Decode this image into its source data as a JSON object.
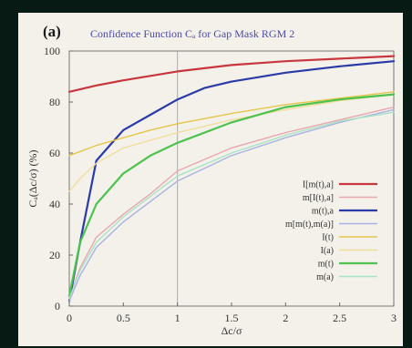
{
  "figure": {
    "tag": "(a)",
    "title": "Confidence Function Cₐ for Gap Mask RGM 2"
  },
  "chart_data": {
    "type": "line",
    "title": "Confidence Function Cₐ for Gap Mask RGM 2",
    "xlabel": "Δc/σ",
    "ylabel": "Cₐ(Δc/σ) (%)",
    "xlim": [
      0,
      3
    ],
    "ylim": [
      0,
      100
    ],
    "xticks": [
      "0",
      "0.5",
      "1",
      "1.5",
      "2",
      "2.5",
      "3"
    ],
    "yticks": [
      "0",
      "20",
      "40",
      "60",
      "80",
      "100"
    ],
    "grid": false,
    "vline_x": 1,
    "legend_position": "bottom-right",
    "series": [
      {
        "name": "I[m(t),a]",
        "color": "#c8363e",
        "width": 2.2,
        "x": [
          0,
          0.25,
          0.5,
          1,
          1.5,
          2,
          2.5,
          3
        ],
        "y": [
          84,
          86.5,
          88.5,
          92,
          94.5,
          96,
          97,
          98
        ]
      },
      {
        "name": "m[I(t),a]",
        "color": "#e8a8ae",
        "width": 1.4,
        "x": [
          0,
          0.1,
          0.25,
          0.5,
          0.75,
          1,
          1.5,
          2,
          2.5,
          3
        ],
        "y": [
          3,
          15,
          27,
          36,
          44,
          53,
          62,
          68,
          73,
          78
        ]
      },
      {
        "name": "m(t),a",
        "color": "#2a3aa8",
        "width": 2.2,
        "x": [
          0,
          0.1,
          0.25,
          0.5,
          0.75,
          1,
          1.25,
          1.5,
          2,
          2.5,
          3
        ],
        "y": [
          2,
          25,
          57,
          69,
          75,
          81,
          85.5,
          88,
          91.5,
          94,
          96
        ]
      },
      {
        "name": "m[m(t),m(a)]",
        "color": "#a9b3e0",
        "width": 1.4,
        "x": [
          0,
          0.1,
          0.25,
          0.5,
          0.75,
          1,
          1.5,
          2,
          2.5,
          3
        ],
        "y": [
          2,
          12,
          23,
          33,
          41,
          49,
          59,
          66,
          72,
          77
        ]
      },
      {
        "name": "I(t)",
        "color": "#e5c64a",
        "width": 1.4,
        "x": [
          0,
          0.25,
          0.5,
          0.75,
          1,
          1.5,
          2,
          2.5,
          3
        ],
        "y": [
          59,
          63,
          66,
          69,
          71.5,
          75.5,
          79,
          81.5,
          84
        ]
      },
      {
        "name": "I(a)",
        "color": "#f2de9c",
        "width": 1.4,
        "x": [
          0,
          0.1,
          0.25,
          0.5,
          0.75,
          1,
          1.5,
          2,
          2.5,
          3
        ],
        "y": [
          45,
          50,
          56,
          62,
          65,
          68,
          73,
          77,
          80.5,
          83
        ]
      },
      {
        "name": "m(t)",
        "color": "#4ec24e",
        "width": 2.2,
        "x": [
          0,
          0.1,
          0.25,
          0.5,
          0.75,
          1,
          1.5,
          2,
          2.5,
          3
        ],
        "y": [
          4,
          25,
          40,
          52,
          59,
          64,
          72,
          78,
          81,
          83
        ]
      },
      {
        "name": "m(a)",
        "color": "#a8e3c6",
        "width": 1.4,
        "x": [
          0,
          0.1,
          0.25,
          0.5,
          0.75,
          1,
          1.5,
          2,
          2.5,
          3
        ],
        "y": [
          3,
          14,
          25,
          35,
          43,
          51,
          60,
          67,
          72.5,
          76
        ]
      }
    ]
  }
}
